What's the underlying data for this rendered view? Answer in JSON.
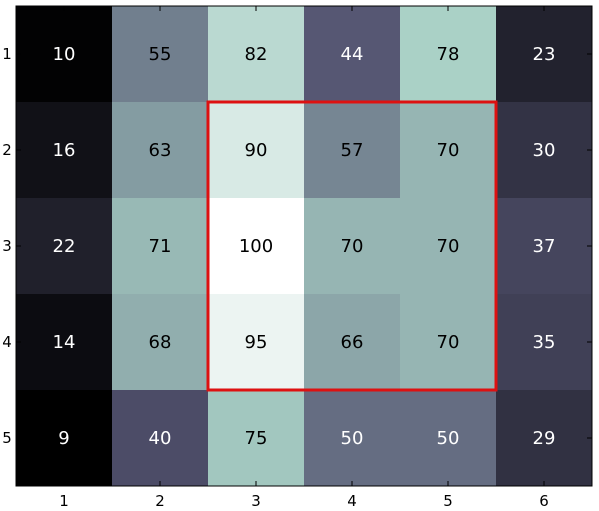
{
  "chart_data": {
    "type": "heatmap",
    "title": "",
    "xlabel": "",
    "ylabel": "",
    "x_ticks": [
      "1",
      "2",
      "3",
      "4",
      "5",
      "6"
    ],
    "y_ticks": [
      "1",
      "2",
      "3",
      "4",
      "5"
    ],
    "values": [
      [
        10,
        55,
        82,
        44,
        78,
        23
      ],
      [
        16,
        63,
        90,
        57,
        70,
        30
      ],
      [
        22,
        71,
        100,
        70,
        70,
        37
      ],
      [
        14,
        68,
        95,
        66,
        70,
        35
      ],
      [
        9,
        40,
        75,
        50,
        50,
        29
      ]
    ],
    "value_labels": [
      [
        "10",
        "55",
        "82",
        "44",
        "78",
        "23"
      ],
      [
        "16",
        "63",
        "90",
        "57",
        "70",
        "30"
      ],
      [
        "22",
        "71",
        "100",
        "70",
        "70",
        "37"
      ],
      [
        "14",
        "68",
        "95",
        "66",
        "70",
        "35"
      ],
      [
        "9",
        "40",
        "75",
        "50",
        "50",
        "29"
      ]
    ],
    "colormap": "bone",
    "value_range": [
      9,
      100
    ],
    "highlight": {
      "rows": [
        2,
        4
      ],
      "cols": [
        3,
        5
      ],
      "color": "#dd1111"
    },
    "grid": false,
    "legend": "none"
  }
}
